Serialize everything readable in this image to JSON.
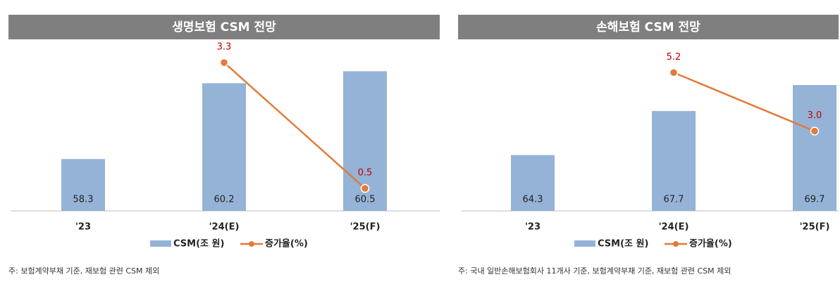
{
  "chart_data": [
    {
      "type": "bar",
      "title": "생명보험 CSM 전망",
      "categories": [
        "'23",
        "'24(E)",
        "'25(F)"
      ],
      "series": [
        {
          "name": "CSM(조 원)",
          "type": "bar",
          "color": "#95b3d7",
          "values": [
            58.3,
            60.2,
            60.5
          ]
        },
        {
          "name": "증가율(%)",
          "type": "line",
          "axis": "y2",
          "color": "#e07b39",
          "label_color": "#c00000",
          "values": [
            null,
            3.3,
            0.5
          ]
        }
      ],
      "ylim": [
        57,
        61
      ],
      "y2lim": [
        0,
        3.55
      ],
      "note": "주: 보험계약부채 기준, 재보험 관련 CSM 제외"
    },
    {
      "type": "bar",
      "title": "손해보험 CSM 전망",
      "categories": [
        "'23",
        "'24(E)",
        "'25(F)"
      ],
      "series": [
        {
          "name": "CSM(조 원)",
          "type": "bar",
          "color": "#95b3d7",
          "values": [
            64.3,
            67.7,
            69.7
          ]
        },
        {
          "name": "증가율(%)",
          "type": "line",
          "axis": "y2",
          "color": "#e07b39",
          "label_color": "#c00000",
          "values": [
            null,
            5.2,
            3.0
          ],
          "value_labels": [
            null,
            "5.2",
            "3.0"
          ]
        }
      ],
      "ylim": [
        60,
        72.3
      ],
      "y2lim": [
        0,
        6
      ],
      "note": "주: 국내 일반손해보험회사 11개사 기준, 보험계약부채 기준, 재보험 관련 CSM 제외"
    }
  ]
}
